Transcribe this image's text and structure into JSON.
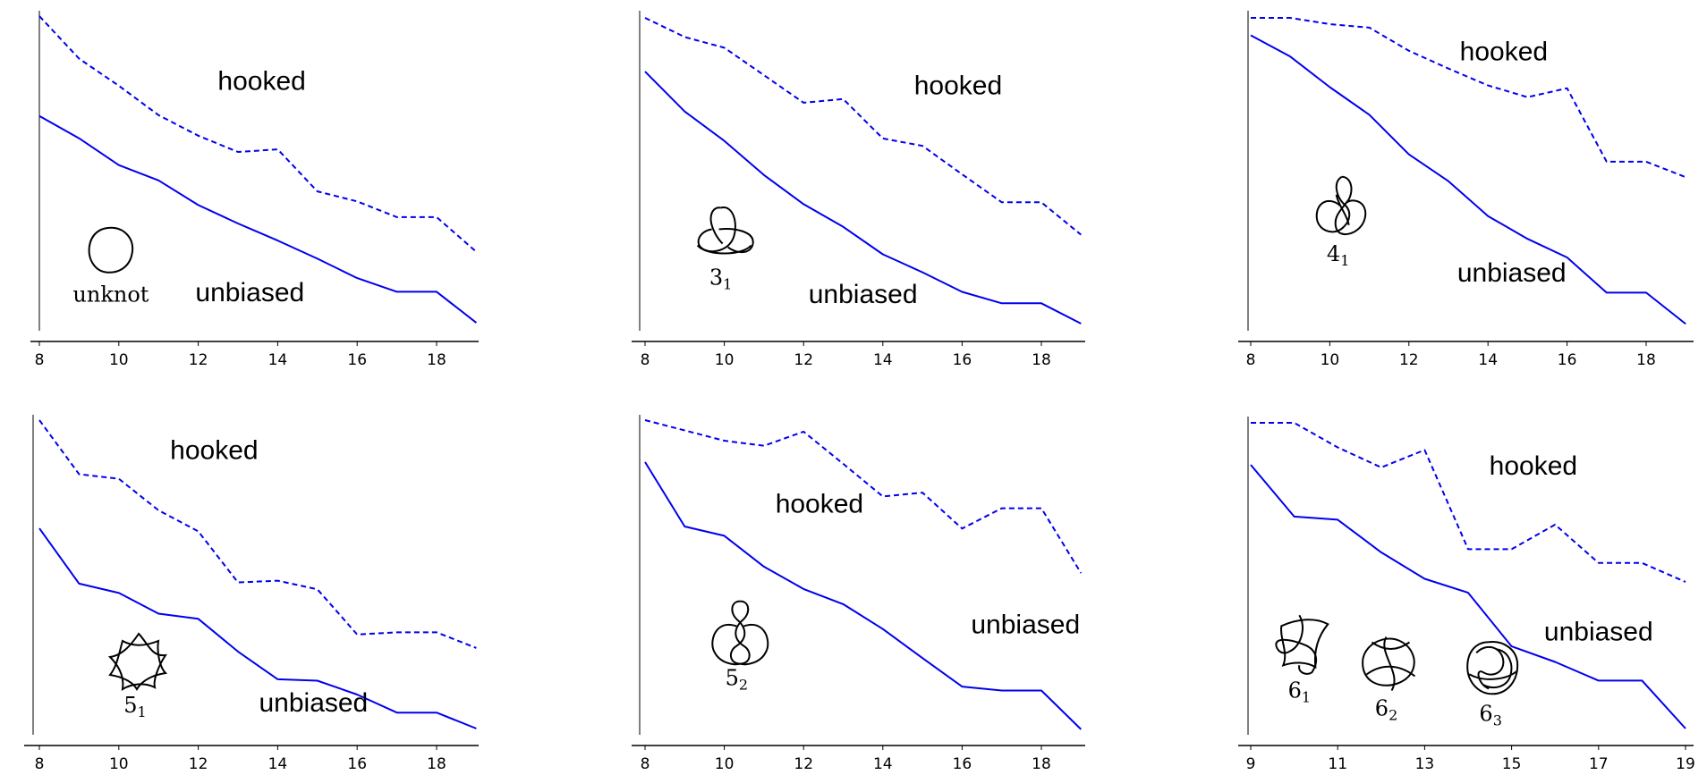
{
  "colors": {
    "series": "#0000ee",
    "axis": "#000000"
  },
  "chart_data": [
    {
      "type": "line",
      "x": [
        8,
        9,
        10,
        11,
        12,
        13,
        14,
        15,
        16,
        17,
        18,
        19
      ],
      "xticks": [
        8,
        10,
        12,
        14,
        16,
        18
      ],
      "series": [
        {
          "name": "hooked",
          "style": "dashed",
          "values": [
            1.0,
            0.838,
            0.735,
            0.623,
            0.545,
            0.483,
            0.493,
            0.333,
            0.295,
            0.235,
            0.235,
            0.103
          ]
        },
        {
          "name": "unbiased",
          "style": "solid",
          "values": [
            0.62,
            0.535,
            0.433,
            0.375,
            0.281,
            0.211,
            0.146,
            0.077,
            0.003,
            -0.049,
            -0.049,
            -0.167
          ]
        }
      ],
      "ylim": [
        -0.17,
        1.0
      ],
      "annotations": [
        {
          "text": "hooked",
          "x": 13.6,
          "y": 0.72
        },
        {
          "text": "unbiased",
          "x": 13.3,
          "y": -0.085
        }
      ],
      "knots": [
        {
          "name": "unknot",
          "sub": "",
          "icon": "unknot-icon",
          "x": 9.8,
          "y": 0.11
        }
      ]
    },
    {
      "type": "line",
      "x": [
        8,
        9,
        10,
        11,
        12,
        13,
        14,
        15,
        16,
        17,
        18,
        19
      ],
      "xticks": [
        8,
        10,
        12,
        14,
        16,
        18
      ],
      "series": [
        {
          "name": "hooked",
          "style": "dashed",
          "values": [
            1.0,
            0.92,
            0.875,
            0.76,
            0.645,
            0.66,
            0.495,
            0.464,
            0.345,
            0.228,
            0.228,
            0.092
          ]
        },
        {
          "name": "unbiased",
          "style": "solid",
          "values": [
            0.775,
            0.608,
            0.485,
            0.342,
            0.22,
            0.125,
            0.01,
            -0.065,
            -0.147,
            -0.195,
            -0.195,
            -0.28
          ]
        }
      ],
      "ylim": [
        -0.28,
        1.0
      ],
      "annotations": [
        {
          "text": "hooked",
          "x": 15.9,
          "y": 0.68
        },
        {
          "text": "unbiased",
          "x": 13.5,
          "y": -0.193
        }
      ],
      "knots": [
        {
          "name": "3",
          "sub": "1",
          "icon": "trefoil-knot-icon",
          "x": 10.0,
          "y": 0.1
        }
      ]
    },
    {
      "type": "line",
      "x": [
        8,
        9,
        10,
        11,
        12,
        13,
        14,
        15,
        16,
        17,
        18,
        19
      ],
      "xticks": [
        8,
        10,
        12,
        14,
        16,
        18
      ],
      "series": [
        {
          "name": "hooked",
          "style": "dashed",
          "values": [
            1.0,
            1.0,
            0.965,
            0.945,
            0.815,
            0.715,
            0.62,
            0.554,
            0.604,
            0.191,
            0.191,
            0.104
          ]
        },
        {
          "name": "unbiased",
          "style": "solid",
          "values": [
            0.902,
            0.782,
            0.61,
            0.455,
            0.232,
            0.081,
            -0.115,
            -0.243,
            -0.348,
            -0.546,
            -0.546,
            -0.722
          ]
        }
      ],
      "ylim": [
        -0.72,
        1.0
      ],
      "annotations": [
        {
          "text": "hooked",
          "x": 14.4,
          "y": 0.76
        },
        {
          "text": "unbiased",
          "x": 14.6,
          "y": -0.483
        }
      ],
      "knots": [
        {
          "name": "4",
          "sub": "1",
          "icon": "figure-eight-knot-icon",
          "x": 10.3,
          "y": -0.075
        }
      ]
    },
    {
      "type": "line",
      "x": [
        8,
        9,
        10,
        11,
        12,
        13,
        14,
        15,
        16,
        17,
        18,
        19
      ],
      "xticks": [
        8,
        10,
        12,
        14,
        16,
        18
      ],
      "series": [
        {
          "name": "hooked",
          "style": "dashed",
          "values": [
            1.0,
            0.82,
            0.805,
            0.7,
            0.63,
            0.46,
            0.466,
            0.437,
            0.287,
            0.294,
            0.294,
            0.242
          ]
        },
        {
          "name": "unbiased",
          "style": "solid",
          "values": [
            0.64,
            0.456,
            0.425,
            0.356,
            0.339,
            0.23,
            0.138,
            0.133,
            0.087,
            0.027,
            0.027,
            -0.026
          ]
        }
      ],
      "ylim": [
        -0.026,
        1.0
      ],
      "annotations": [
        {
          "text": "hooked",
          "x": 12.4,
          "y": 0.87
        },
        {
          "text": "unbiased",
          "x": 14.9,
          "y": 0.03
        }
      ],
      "knots": [
        {
          "name": "5",
          "sub": "1",
          "icon": "cinquefoil-knot-icon",
          "x": 10.5,
          "y": 0.2
        }
      ]
    },
    {
      "type": "line",
      "x": [
        8,
        9,
        10,
        11,
        12,
        13,
        14,
        15,
        16,
        17,
        18,
        19
      ],
      "xticks": [
        8,
        10,
        12,
        14,
        16,
        18
      ],
      "series": [
        {
          "name": "hooked",
          "style": "dashed",
          "values": [
            1.0,
            0.96,
            0.92,
            0.9,
            0.955,
            0.83,
            0.703,
            0.718,
            0.578,
            0.657,
            0.657,
            0.405
          ]
        },
        {
          "name": "unbiased",
          "style": "solid",
          "values": [
            0.837,
            0.586,
            0.55,
            0.43,
            0.343,
            0.284,
            0.187,
            0.074,
            -0.037,
            -0.052,
            -0.052,
            -0.203
          ]
        }
      ],
      "ylim": [
        -0.2,
        1.0
      ],
      "annotations": [
        {
          "text": "hooked",
          "x": 12.4,
          "y": 0.64
        },
        {
          "text": "unbiased",
          "x": 17.6,
          "y": 0.17
        }
      ],
      "knots": [
        {
          "name": "5",
          "sub": "2",
          "icon": "three-twist-knot-icon",
          "x": 10.4,
          "y": 0.17
        }
      ]
    },
    {
      "type": "line",
      "x": [
        9,
        10,
        11,
        12,
        13,
        14,
        15,
        16,
        17,
        18,
        19
      ],
      "xticks": [
        9,
        11,
        13,
        15,
        17,
        19
      ],
      "series": [
        {
          "name": "hooked",
          "style": "dashed",
          "values": [
            1.0,
            1.0,
            0.905,
            0.828,
            0.895,
            0.512,
            0.512,
            0.607,
            0.459,
            0.459,
            0.386
          ]
        },
        {
          "name": "unbiased",
          "style": "solid",
          "values": [
            0.838,
            0.638,
            0.626,
            0.5,
            0.398,
            0.344,
            0.137,
            0.077,
            0.005,
            0.005,
            -0.18
          ]
        }
      ],
      "ylim": [
        -0.18,
        1.0
      ],
      "annotations": [
        {
          "text": "hooked",
          "x": 15.5,
          "y": 0.8
        },
        {
          "text": "unbiased",
          "x": 17.0,
          "y": 0.16
        }
      ],
      "knots": [
        {
          "name": "6",
          "sub": "1",
          "icon": "stevedore-knot-icon",
          "x": 10.2,
          "y": 0.14
        },
        {
          "name": "6",
          "sub": "2",
          "icon": "knot-6-2-icon",
          "x": 12.2,
          "y": 0.07
        },
        {
          "name": "6",
          "sub": "3",
          "icon": "knot-6-3-icon",
          "x": 14.6,
          "y": 0.05
        }
      ]
    }
  ]
}
